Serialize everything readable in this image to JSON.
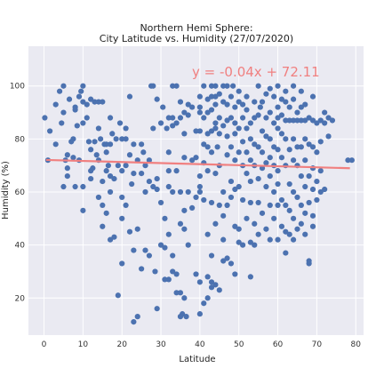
{
  "chart_data": {
    "type": "scatter",
    "title_line1": "Northern Hemi Sphere:",
    "title_line2": "City Latitude vs. Humidity (27/07/2020)",
    "xlabel": "Latitude",
    "ylabel": "Humidity (%)",
    "xlim": [
      -4,
      82
    ],
    "ylim": [
      6,
      115
    ],
    "xticks": [
      0,
      10,
      20,
      30,
      40,
      50,
      60,
      70,
      80
    ],
    "yticks": [
      20,
      40,
      60,
      80,
      100
    ],
    "grid": true,
    "regression": {
      "slope": -0.04,
      "intercept": 72.11,
      "x_start": 0.5,
      "x_end": 78.5,
      "equation_label": "y = -0.04x + 72.11"
    },
    "colors": {
      "background": "#EAEAF2",
      "grid": "#FFFFFF",
      "points": "#4C72B0",
      "line": "#F08080"
    },
    "points": [
      [
        0.2,
        88
      ],
      [
        1,
        72
      ],
      [
        1.5,
        83
      ],
      [
        3,
        93
      ],
      [
        3,
        78
      ],
      [
        4,
        98
      ],
      [
        4.5,
        86
      ],
      [
        5,
        100
      ],
      [
        5,
        90
      ],
      [
        5,
        62
      ],
      [
        5.5,
        72
      ],
      [
        6,
        74
      ],
      [
        6,
        69
      ],
      [
        6,
        66
      ],
      [
        6.5,
        95
      ],
      [
        7,
        79
      ],
      [
        7.5,
        80
      ],
      [
        7.5,
        73
      ],
      [
        8,
        92
      ],
      [
        8,
        91
      ],
      [
        8,
        62
      ],
      [
        8.5,
        85
      ],
      [
        9,
        96
      ],
      [
        9,
        72
      ],
      [
        9.5,
        98
      ],
      [
        10,
        100
      ],
      [
        10,
        94
      ],
      [
        10,
        86
      ],
      [
        10,
        62
      ],
      [
        10,
        53
      ],
      [
        11,
        93
      ],
      [
        11,
        88
      ],
      [
        11.5,
        79
      ],
      [
        12,
        76
      ],
      [
        12,
        65
      ],
      [
        12,
        95
      ],
      [
        12,
        68
      ],
      [
        12.5,
        69
      ],
      [
        13,
        94
      ],
      [
        13,
        79
      ],
      [
        13.5,
        74
      ],
      [
        14,
        94
      ],
      [
        14,
        84
      ],
      [
        14,
        72
      ],
      [
        14,
        58
      ],
      [
        14.5,
        80
      ],
      [
        15,
        94
      ],
      [
        15,
        64
      ],
      [
        15,
        55
      ],
      [
        15,
        47
      ],
      [
        15.5,
        78
      ],
      [
        16,
        78
      ],
      [
        16,
        75
      ],
      [
        16,
        68
      ],
      [
        16,
        52
      ],
      [
        16.5,
        70
      ],
      [
        17,
        88
      ],
      [
        17,
        78
      ],
      [
        17,
        66
      ],
      [
        17,
        60
      ],
      [
        17,
        42
      ],
      [
        17.5,
        82
      ],
      [
        18,
        65
      ],
      [
        18,
        43
      ],
      [
        18.5,
        80
      ],
      [
        19,
        70
      ],
      [
        19,
        21
      ],
      [
        19.5,
        86
      ],
      [
        20,
        80
      ],
      [
        20,
        68
      ],
      [
        20,
        58
      ],
      [
        20,
        50
      ],
      [
        20,
        33
      ],
      [
        21,
        84
      ],
      [
        21,
        80
      ],
      [
        21,
        70
      ],
      [
        21,
        55
      ],
      [
        22,
        96
      ],
      [
        22,
        74
      ],
      [
        22,
        45
      ],
      [
        22.5,
        63
      ],
      [
        23,
        78
      ],
      [
        23,
        67
      ],
      [
        23,
        38
      ],
      [
        23,
        11
      ],
      [
        24,
        72
      ],
      [
        24,
        46
      ],
      [
        24,
        13
      ],
      [
        25,
        78
      ],
      [
        25,
        67
      ],
      [
        25,
        31
      ],
      [
        25.5,
        75
      ],
      [
        26,
        70
      ],
      [
        26,
        60
      ],
      [
        26,
        38
      ],
      [
        27,
        72
      ],
      [
        27,
        64
      ],
      [
        27,
        36
      ],
      [
        27.5,
        100
      ],
      [
        28,
        100
      ],
      [
        28,
        62
      ],
      [
        28,
        84
      ],
      [
        28.5,
        30
      ],
      [
        29,
        95
      ],
      [
        29,
        65
      ],
      [
        29,
        61
      ],
      [
        29,
        16
      ],
      [
        30,
        86
      ],
      [
        30,
        56
      ],
      [
        30,
        40
      ],
      [
        30.5,
        92
      ],
      [
        31,
        50
      ],
      [
        31,
        39
      ],
      [
        31,
        27
      ],
      [
        31.5,
        84
      ],
      [
        32,
        88
      ],
      [
        32,
        75
      ],
      [
        32,
        68
      ],
      [
        32,
        62
      ],
      [
        32,
        44
      ],
      [
        32,
        27
      ],
      [
        33,
        100
      ],
      [
        33,
        88
      ],
      [
        33,
        85
      ],
      [
        33,
        60
      ],
      [
        33,
        36
      ],
      [
        33,
        30
      ],
      [
        34,
        100
      ],
      [
        34,
        86
      ],
      [
        34,
        68
      ],
      [
        34,
        29
      ],
      [
        34,
        22
      ],
      [
        35,
        94
      ],
      [
        35,
        88
      ],
      [
        35,
        60
      ],
      [
        35,
        48
      ],
      [
        35,
        22
      ],
      [
        35,
        13
      ],
      [
        35.5,
        14
      ],
      [
        36,
        90
      ],
      [
        36,
        82
      ],
      [
        36,
        73
      ],
      [
        36,
        53
      ],
      [
        36,
        46
      ],
      [
        36,
        20
      ],
      [
        36.5,
        13
      ],
      [
        37,
        93
      ],
      [
        37,
        89
      ],
      [
        37,
        60
      ],
      [
        37,
        40
      ],
      [
        38,
        92
      ],
      [
        38,
        72
      ],
      [
        38,
        54
      ],
      [
        39,
        83
      ],
      [
        39,
        73
      ],
      [
        39,
        29
      ],
      [
        39,
        58
      ],
      [
        40,
        96
      ],
      [
        40,
        92
      ],
      [
        40,
        90
      ],
      [
        40,
        83
      ],
      [
        40,
        66
      ],
      [
        40,
        62
      ],
      [
        40,
        60
      ],
      [
        40,
        26
      ],
      [
        40,
        14
      ],
      [
        41,
        100
      ],
      [
        41,
        88
      ],
      [
        41,
        78
      ],
      [
        41,
        71
      ],
      [
        41,
        57
      ],
      [
        41,
        18
      ],
      [
        42,
        95
      ],
      [
        42,
        90
      ],
      [
        42,
        82
      ],
      [
        42,
        77
      ],
      [
        42,
        68
      ],
      [
        42,
        44
      ],
      [
        42,
        28
      ],
      [
        42,
        20
      ],
      [
        43,
        100
      ],
      [
        43,
        96
      ],
      [
        43,
        91
      ],
      [
        43,
        83
      ],
      [
        43,
        75
      ],
      [
        43,
        56
      ],
      [
        43,
        36
      ],
      [
        43,
        26
      ],
      [
        43,
        24
      ],
      [
        44,
        100
      ],
      [
        44,
        96
      ],
      [
        44,
        93
      ],
      [
        44,
        86
      ],
      [
        44,
        84
      ],
      [
        44,
        67
      ],
      [
        44,
        48
      ],
      [
        44,
        25
      ],
      [
        44.5,
        77
      ],
      [
        45,
        97
      ],
      [
        45,
        88
      ],
      [
        45,
        82
      ],
      [
        45,
        70
      ],
      [
        45,
        55
      ],
      [
        45,
        23
      ],
      [
        46,
        100
      ],
      [
        46,
        94
      ],
      [
        46,
        85
      ],
      [
        46,
        60
      ],
      [
        46,
        51
      ],
      [
        46,
        42
      ],
      [
        46,
        34
      ],
      [
        47,
        100
      ],
      [
        47,
        93
      ],
      [
        47,
        87
      ],
      [
        47,
        81
      ],
      [
        47,
        74
      ],
      [
        47,
        55
      ],
      [
        47,
        35
      ],
      [
        48,
        96
      ],
      [
        48,
        88
      ],
      [
        48,
        77
      ],
      [
        48,
        64
      ],
      [
        48,
        58
      ],
      [
        48,
        33
      ],
      [
        48.5,
        100
      ],
      [
        49,
        92
      ],
      [
        49,
        86
      ],
      [
        49,
        82
      ],
      [
        49,
        72
      ],
      [
        49,
        61
      ],
      [
        49,
        47
      ],
      [
        49,
        29
      ],
      [
        50,
        98
      ],
      [
        50,
        94
      ],
      [
        50,
        84
      ],
      [
        50,
        75
      ],
      [
        50,
        62
      ],
      [
        50,
        46
      ],
      [
        50,
        41
      ],
      [
        51,
        93
      ],
      [
        51,
        88
      ],
      [
        51,
        79
      ],
      [
        51,
        70
      ],
      [
        51,
        57
      ],
      [
        51,
        40
      ],
      [
        52,
        96
      ],
      [
        52,
        91
      ],
      [
        52,
        84
      ],
      [
        52,
        75
      ],
      [
        52,
        67
      ],
      [
        52,
        50
      ],
      [
        53,
        86
      ],
      [
        53,
        80
      ],
      [
        53,
        72
      ],
      [
        53,
        64
      ],
      [
        53,
        56
      ],
      [
        53,
        41
      ],
      [
        53,
        28
      ],
      [
        54,
        94
      ],
      [
        54,
        88
      ],
      [
        54,
        78
      ],
      [
        54,
        70
      ],
      [
        54,
        48
      ],
      [
        54,
        40
      ],
      [
        55,
        100
      ],
      [
        55,
        89
      ],
      [
        55,
        77
      ],
      [
        55,
        65
      ],
      [
        55,
        56
      ],
      [
        55,
        44
      ],
      [
        55.5,
        92
      ],
      [
        56,
        94
      ],
      [
        56,
        83
      ],
      [
        56,
        75
      ],
      [
        56,
        69
      ],
      [
        56,
        52
      ],
      [
        57,
        97
      ],
      [
        57,
        88
      ],
      [
        57,
        81
      ],
      [
        57,
        71
      ],
      [
        57,
        62
      ],
      [
        57,
        46
      ],
      [
        58,
        99
      ],
      [
        58,
        90
      ],
      [
        58,
        80
      ],
      [
        58,
        73
      ],
      [
        58,
        66
      ],
      [
        58,
        55
      ],
      [
        58,
        42
      ],
      [
        59,
        96
      ],
      [
        59,
        86
      ],
      [
        59,
        77
      ],
      [
        59,
        70
      ],
      [
        59,
        60
      ],
      [
        59,
        50
      ],
      [
        60,
        100
      ],
      [
        60,
        92
      ],
      [
        60,
        88
      ],
      [
        60,
        84
      ],
      [
        60,
        76
      ],
      [
        60,
        68
      ],
      [
        60,
        63
      ],
      [
        60,
        55
      ],
      [
        60,
        42
      ],
      [
        61,
        95
      ],
      [
        61,
        89
      ],
      [
        61,
        82
      ],
      [
        61,
        73
      ],
      [
        61,
        57
      ],
      [
        61,
        47
      ],
      [
        62,
        98
      ],
      [
        62,
        94
      ],
      [
        62,
        87
      ],
      [
        62,
        80
      ],
      [
        62,
        70
      ],
      [
        62,
        55
      ],
      [
        62,
        45
      ],
      [
        62,
        37
      ],
      [
        63,
        92
      ],
      [
        63,
        87
      ],
      [
        63,
        76
      ],
      [
        63,
        63
      ],
      [
        63,
        53
      ],
      [
        63,
        44
      ],
      [
        64,
        100
      ],
      [
        64,
        95
      ],
      [
        64,
        87
      ],
      [
        64,
        80
      ],
      [
        64,
        72
      ],
      [
        64,
        60
      ],
      [
        64,
        50
      ],
      [
        64,
        42
      ],
      [
        65,
        90
      ],
      [
        65,
        87
      ],
      [
        65,
        77
      ],
      [
        65,
        70
      ],
      [
        65,
        58
      ],
      [
        65,
        46
      ],
      [
        66,
        98
      ],
      [
        66,
        92
      ],
      [
        66,
        87
      ],
      [
        66,
        77
      ],
      [
        66,
        66
      ],
      [
        66,
        55
      ],
      [
        66,
        48
      ],
      [
        67,
        93
      ],
      [
        67,
        87
      ],
      [
        67,
        80
      ],
      [
        67,
        72
      ],
      [
        67,
        62
      ],
      [
        67,
        52
      ],
      [
        67,
        44
      ],
      [
        68,
        88
      ],
      [
        68,
        78
      ],
      [
        68,
        66
      ],
      [
        68,
        56
      ],
      [
        68,
        34
      ],
      [
        68,
        33
      ],
      [
        69,
        96
      ],
      [
        69,
        87
      ],
      [
        69,
        77
      ],
      [
        69,
        69
      ],
      [
        69,
        61
      ],
      [
        69,
        51
      ],
      [
        69,
        47
      ],
      [
        70,
        86
      ],
      [
        70,
        75
      ],
      [
        70,
        64
      ],
      [
        70,
        57
      ],
      [
        71,
        87
      ],
      [
        71,
        79
      ],
      [
        71,
        68
      ],
      [
        71,
        60
      ],
      [
        72,
        90
      ],
      [
        72,
        86
      ],
      [
        72,
        61
      ],
      [
        73,
        88
      ],
      [
        73,
        81
      ],
      [
        74,
        87
      ],
      [
        78,
        72
      ],
      [
        79,
        72
      ]
    ]
  }
}
